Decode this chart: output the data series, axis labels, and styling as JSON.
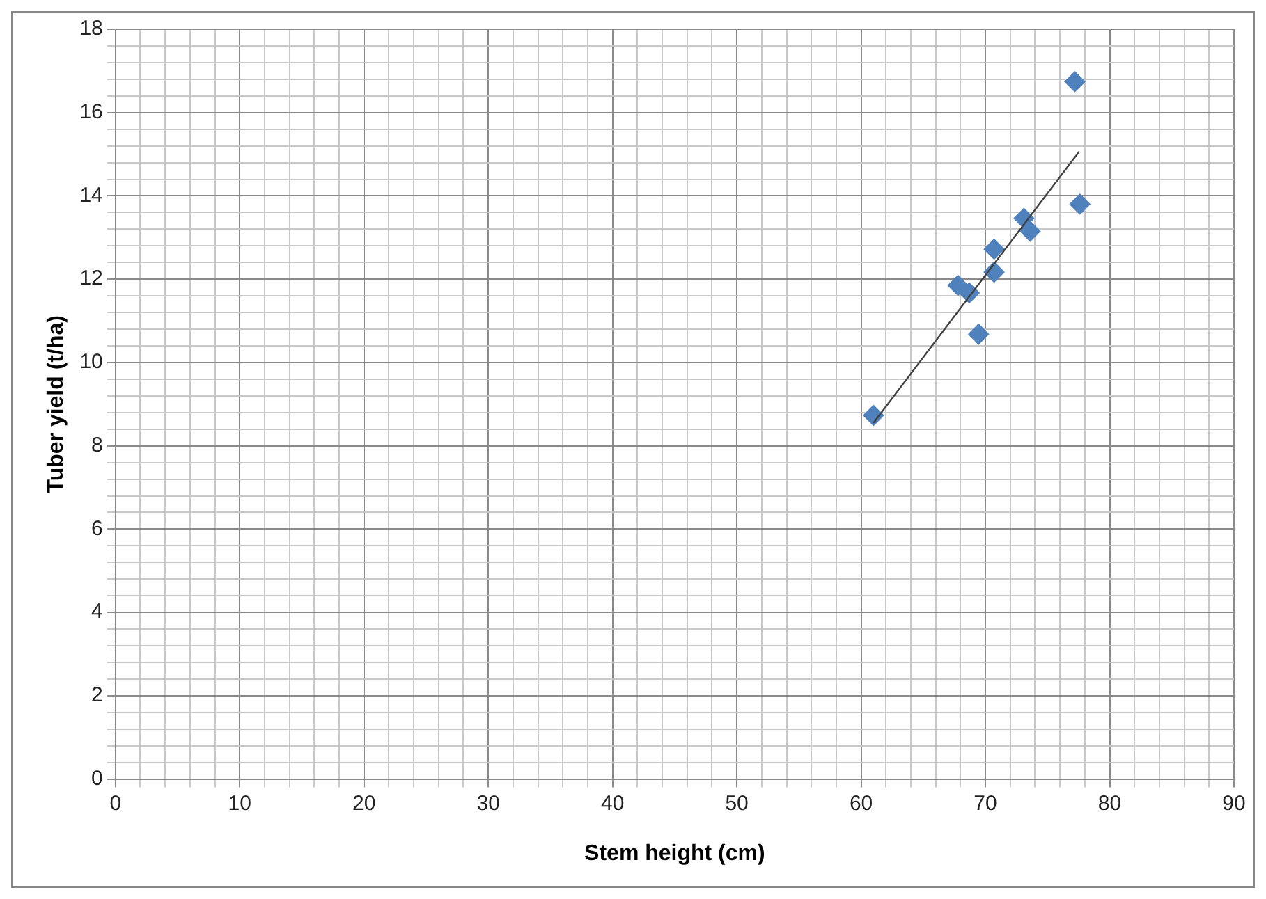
{
  "chart_data": {
    "type": "scatter",
    "xlabel": "Stem height (cm)",
    "ylabel": "Tuber yield (t/ha)",
    "xlim": [
      0,
      90
    ],
    "ylim": [
      0,
      18
    ],
    "xticks": [
      0,
      {
        "value": 2,
        "label": null
      },
      {
        "value": 4,
        "label": null
      },
      {
        "value": 6,
        "label": null
      },
      {
        "value": 8,
        "label": null
      },
      10,
      {
        "value": 12,
        "label": null
      },
      {
        "value": 14,
        "label": null
      },
      {
        "value": 16,
        "label": null
      },
      {
        "value": 18,
        "label": null
      },
      20,
      {
        "value": 22,
        "label": null
      },
      {
        "value": 24,
        "label": null
      },
      {
        "value": 26,
        "label": null
      },
      {
        "value": 28,
        "label": null
      },
      30,
      {
        "value": 32,
        "label": null
      },
      {
        "value": 34,
        "label": null
      },
      {
        "value": 36,
        "label": null
      },
      {
        "value": 38,
        "label": null
      },
      40,
      {
        "value": 42,
        "label": null
      },
      {
        "value": 44,
        "label": null
      },
      {
        "value": 46,
        "label": null
      },
      {
        "value": 48,
        "label": null
      },
      50,
      {
        "value": 52,
        "label": null
      },
      {
        "value": 54,
        "label": null
      },
      {
        "value": 56,
        "label": null
      },
      {
        "value": 58,
        "label": null
      },
      60,
      {
        "value": 62,
        "label": null
      },
      {
        "value": 64,
        "label": null
      },
      {
        "value": 66,
        "label": null
      },
      {
        "value": 68,
        "label": null
      },
      70,
      {
        "value": 72,
        "label": null
      },
      {
        "value": 74,
        "label": null
      },
      {
        "value": 76,
        "label": null
      },
      {
        "value": 78,
        "label": null
      },
      80,
      {
        "value": 82,
        "label": null
      },
      {
        "value": 84,
        "label": null
      },
      {
        "value": 86,
        "label": null
      },
      {
        "value": 88,
        "label": null
      },
      90
    ],
    "yticks": [
      0,
      {
        "value": 0.4,
        "label": null
      },
      {
        "value": 0.8,
        "label": null
      },
      {
        "value": 1.2,
        "label": null
      },
      {
        "value": 1.6,
        "label": null
      },
      2,
      {
        "value": 2.4,
        "label": null
      },
      {
        "value": 2.8,
        "label": null
      },
      {
        "value": 3.2,
        "label": null
      },
      {
        "value": 3.6,
        "label": null
      },
      4,
      {
        "value": 4.4,
        "label": null
      },
      {
        "value": 4.8,
        "label": null
      },
      {
        "value": 5.2,
        "label": null
      },
      {
        "value": 5.6,
        "label": null
      },
      6,
      {
        "value": 6.4,
        "label": null
      },
      {
        "value": 6.8,
        "label": null
      },
      {
        "value": 7.2,
        "label": null
      },
      {
        "value": 7.6,
        "label": null
      },
      8,
      {
        "value": 8.4,
        "label": null
      },
      {
        "value": 8.8,
        "label": null
      },
      {
        "value": 9.2,
        "label": null
      },
      {
        "value": 9.6,
        "label": null
      },
      10,
      {
        "value": 10.4,
        "label": null
      },
      {
        "value": 10.8,
        "label": null
      },
      {
        "value": 11.2,
        "label": null
      },
      {
        "value": 11.6,
        "label": null
      },
      12,
      {
        "value": 12.4,
        "label": null
      },
      {
        "value": 12.8,
        "label": null
      },
      {
        "value": 13.2,
        "label": null
      },
      {
        "value": 13.6,
        "label": null
      },
      14,
      {
        "value": 14.4,
        "label": null
      },
      {
        "value": 14.8,
        "label": null
      },
      {
        "value": 15.2,
        "label": null
      },
      {
        "value": 15.6,
        "label": null
      },
      16,
      {
        "value": 16.4,
        "label": null
      },
      {
        "value": 16.8,
        "label": null
      },
      {
        "value": 17.2,
        "label": null
      },
      {
        "value": 17.6,
        "label": null
      },
      18
    ],
    "grid": true,
    "marker": "diamond",
    "series": [
      {
        "color": "#4f81bd",
        "x": [
          61.0,
          67.8,
          68.7,
          69.45,
          70.7,
          70.7,
          73.1,
          73.6,
          77.2,
          77.6
        ],
        "values": [
          8.73,
          11.85,
          11.67,
          10.68,
          12.72,
          12.17,
          13.46,
          13.15,
          16.74,
          13.8
        ]
      },
      {
        "type": "line",
        "color": "#404040",
        "marker": "none",
        "x": [
          61.0,
          77.56
        ],
        "values": [
          8.55,
          15.07
        ]
      }
    ]
  }
}
